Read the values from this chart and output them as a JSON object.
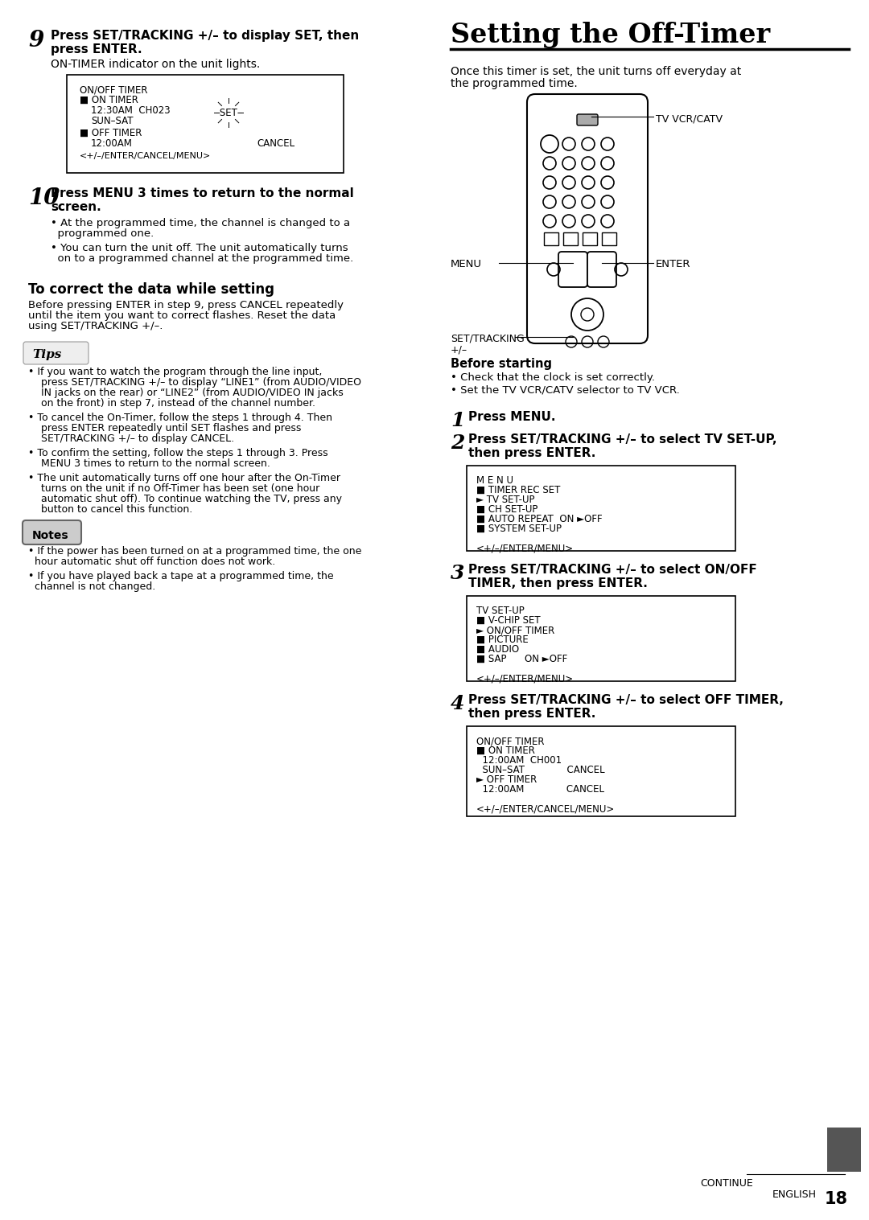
{
  "bg_color": "#ffffff",
  "title": "Setting the Off-Timer",
  "page_number": "18",
  "left_column": {
    "step9_num": "9",
    "step9_line1": "Press SET/TRACKING +/– to display SET, then",
    "step9_line2": "press ENTER.",
    "step9_sub": "ON-TIMER indicator on the unit lights.",
    "step10_num": "10",
    "step10_line1": "Press MENU 3 times to return to the normal",
    "step10_line2": "screen.",
    "step10_bullets": [
      "At the programmed time, the channel is changed to a programmed one.",
      "You can turn the unit off. The unit automatically turns on to a programmed channel at the programmed time."
    ],
    "correct_title": "To correct the data while setting",
    "correct_body": "Before pressing ENTER in step 9, press CANCEL repeatedly until the item you want to correct flashes. Reset the data using SET/TRACKING +/–.",
    "tips_title": "Tips",
    "tips_bullets": [
      "If you want to watch the program through the line input, press SET/TRACKING +/– to display “LINE1” (from AUDIO/VIDEO IN jacks on the rear) or “LINE2” (from AUDIO/VIDEO IN jacks on the front) in step 7, instead of the channel number.",
      "To cancel the On-Timer, follow the steps 1 through 4. Then press ENTER repeatedly until SET flashes and press SET/TRACKING +/– to display CANCEL.",
      "To confirm the setting, follow the steps 1 through 3. Press MENU 3 times  to return to the normal screen.",
      "The unit automatically turns off one hour after the On-Timer turns on the unit if no Off-Timer has been set (one hour automatic shut off).  To continue watching the TV, press any button to cancel this function."
    ],
    "notes_title": "Notes",
    "notes_bullets": [
      "If the power has been turned on at a programmed time, the one hour automatic shut off function does not work.",
      "If you have played back a tape at a programmed time, the channel is not changed."
    ]
  },
  "right_column": {
    "intro": "Once this timer is set, the unit turns off everyday at the programmed time.",
    "remote_label_top": "TV VCR/CATV",
    "remote_label_menu": "MENU",
    "remote_label_enter": "ENTER",
    "remote_label_set_line1": "SET/TRACKING",
    "remote_label_set_line2": "+/–",
    "before_starting_title": "Before starting",
    "before_starting_bullets": [
      "Check that the clock is set correctly.",
      "Set the TV VCR/CATV selector to TV VCR."
    ],
    "step1_num": "1",
    "step1_bold": "Press MENU.",
    "step2_num": "2",
    "step2_line1": "Press SET/TRACKING +/– to select TV SET-UP,",
    "step2_line2": "then press ENTER.",
    "box2_lines": [
      "M E N U",
      "■ TIMER REC SET",
      "► TV SET-UP",
      "■ CH SET-UP",
      "■ AUTO REPEAT  ON ►OFF",
      "■ SYSTEM SET-UP",
      "",
      "<+/–/ENTER/MENU>"
    ],
    "step3_num": "3",
    "step3_line1": "Press SET/TRACKING +/– to select ON/OFF",
    "step3_line2": "TIMER, then press ENTER.",
    "box3_lines": [
      "TV SET-UP",
      "■ V-CHIP SET",
      "► ON/OFF TIMER",
      "■ PICTURE",
      "■ AUDIO",
      "■ SAP      ON ►OFF",
      "",
      "<+/–/ENTER/MENU>"
    ],
    "step4_num": "4",
    "step4_line1": "Press SET/TRACKING +/– to select OFF TIMER,",
    "step4_line2": "then press ENTER.",
    "box4_lines": [
      "ON/OFF TIMER",
      "■ ON TIMER",
      "  12:00AM  CH001",
      "  SUN–SAT              CANCEL",
      "► OFF TIMER",
      "  12:00AM              CANCEL",
      "",
      "<+/–/ENTER/CANCEL/MENU>"
    ],
    "continue_text": "CONTINUE"
  }
}
